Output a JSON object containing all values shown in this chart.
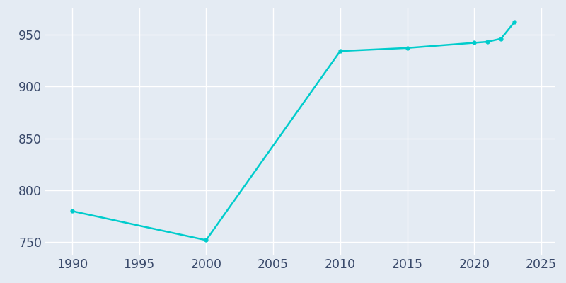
{
  "x": [
    1990,
    2000,
    2010,
    2015,
    2020,
    2021,
    2022,
    2023
  ],
  "y": [
    780,
    752,
    934,
    937,
    942,
    943,
    946,
    962
  ],
  "line_color": "#00CCCC",
  "marker": "o",
  "marker_size": 3.5,
  "bg_color": "#E4EBF3",
  "fig_bg_color": "#E4EBF3",
  "xlim": [
    1988,
    2026
  ],
  "ylim": [
    738,
    975
  ],
  "xticks": [
    1990,
    1995,
    2000,
    2005,
    2010,
    2015,
    2020,
    2025
  ],
  "yticks": [
    750,
    800,
    850,
    900,
    950
  ],
  "grid_color": "#FFFFFF",
  "tick_label_color": "#3A4A6B",
  "tick_fontsize": 12.5,
  "linewidth": 1.8
}
